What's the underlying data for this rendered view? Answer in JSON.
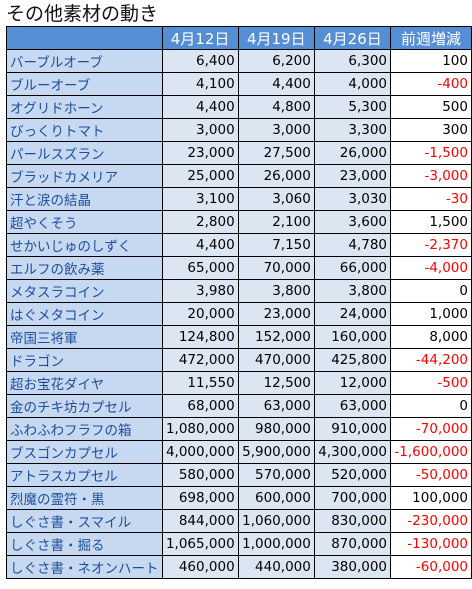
{
  "title": "その他素材の動き",
  "headers": [
    "",
    "4月12日",
    "4月19日",
    "4月26日",
    "前週増減"
  ],
  "rows": [
    {
      "name": "バーブルオーブ",
      "v1": "6,400",
      "v2": "6,200",
      "v3": "6,300",
      "diff": "100"
    },
    {
      "name": "ブルーオーブ",
      "v1": "4,100",
      "v2": "4,400",
      "v3": "4,000",
      "diff": "-400"
    },
    {
      "name": "オグリドホーン",
      "v1": "4,400",
      "v2": "4,800",
      "v3": "5,300",
      "diff": "500"
    },
    {
      "name": "びっくりトマト",
      "v1": "3,000",
      "v2": "3,000",
      "v3": "3,300",
      "diff": "300"
    },
    {
      "name": "パールスズラン",
      "v1": "23,000",
      "v2": "27,500",
      "v3": "26,000",
      "diff": "-1,500"
    },
    {
      "name": "ブラッドカメリア",
      "v1": "25,000",
      "v2": "26,000",
      "v3": "23,000",
      "diff": "-3,000"
    },
    {
      "name": "汗と涙の結晶",
      "v1": "3,100",
      "v2": "3,060",
      "v3": "3,030",
      "diff": "-30"
    },
    {
      "name": "超やくそう",
      "v1": "2,800",
      "v2": "2,100",
      "v3": "3,600",
      "diff": "1,500"
    },
    {
      "name": "せかいじゅのしずく",
      "v1": "4,400",
      "v2": "7,150",
      "v3": "4,780",
      "diff": "-2,370"
    },
    {
      "name": "エルフの飲み薬",
      "v1": "65,000",
      "v2": "70,000",
      "v3": "66,000",
      "diff": "-4,000"
    },
    {
      "name": "メタスラコイン",
      "v1": "3,980",
      "v2": "3,800",
      "v3": "3,800",
      "diff": "0"
    },
    {
      "name": "はぐメタコイン",
      "v1": "20,000",
      "v2": "23,000",
      "v3": "24,000",
      "diff": "1,000"
    },
    {
      "name": "帝国三将軍",
      "v1": "124,800",
      "v2": "152,000",
      "v3": "160,000",
      "diff": "8,000"
    },
    {
      "name": "ドラゴン",
      "v1": "472,000",
      "v2": "470,000",
      "v3": "425,800",
      "diff": "-44,200"
    },
    {
      "name": "超お宝花ダイヤ",
      "v1": "11,550",
      "v2": "12,500",
      "v3": "12,000",
      "diff": "-500"
    },
    {
      "name": "金のチキ坊カプセル",
      "v1": "68,000",
      "v2": "63,000",
      "v3": "63,000",
      "diff": "0"
    },
    {
      "name": "ふわふわフラフの箱",
      "v1": "1,080,000",
      "v2": "980,000",
      "v3": "910,000",
      "diff": "-70,000"
    },
    {
      "name": "ブスゴンカプセル",
      "v1": "4,000,000",
      "v2": "5,900,000",
      "v3": "4,300,000",
      "diff": "-1,600,000"
    },
    {
      "name": "アトラスカプセル",
      "v1": "580,000",
      "v2": "570,000",
      "v3": "520,000",
      "diff": "-50,000"
    },
    {
      "name": "烈魔の霊符・黒",
      "v1": "698,000",
      "v2": "600,000",
      "v3": "700,000",
      "diff": "100,000"
    },
    {
      "name": "しぐさ書・スマイル",
      "v1": "844,000",
      "v2": "1,060,000",
      "v3": "830,000",
      "diff": "-230,000"
    },
    {
      "name": "しぐさ書・掘る",
      "v1": "1,065,000",
      "v2": "1,000,000",
      "v3": "870,000",
      "diff": "-130,000"
    },
    {
      "name": "しぐさ書・ネオンハート",
      "v1": "460,000",
      "v2": "440,000",
      "v3": "380,000",
      "diff": "-60,000"
    }
  ]
}
